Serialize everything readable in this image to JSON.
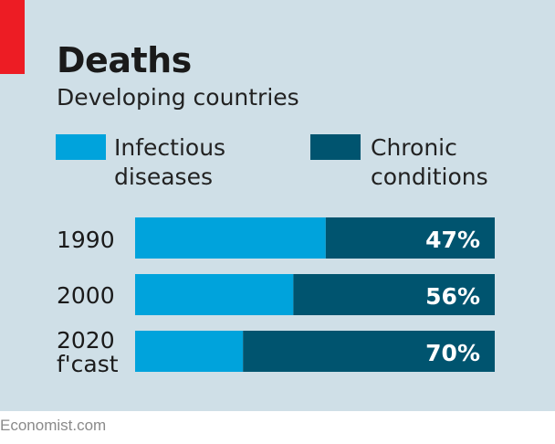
{
  "colors": {
    "background": "#cfdfe7",
    "accent_red": "#ed1c24",
    "infectious": "#00a3dc",
    "chronic": "#00546f",
    "value_label": "#ffffff"
  },
  "footer": "Economist.com",
  "chart_data": {
    "type": "bar",
    "orientation": "horizontal",
    "stacked": true,
    "normalized": true,
    "title": "Deaths",
    "subtitle": "Developing countries",
    "categories": [
      "1990",
      "2000",
      "2020"
    ],
    "category_sublabels": [
      "",
      "",
      "f'cast"
    ],
    "series": [
      {
        "name": "Infectious diseases",
        "legend_lines": [
          "Infectious",
          "diseases"
        ],
        "values": [
          53,
          44,
          30
        ]
      },
      {
        "name": "Chronic conditions",
        "legend_lines": [
          "Chronic",
          "conditions"
        ],
        "values": [
          47,
          56,
          70
        ]
      }
    ],
    "data_labels": [
      "47%",
      "56%",
      "70%"
    ],
    "xlim": [
      0,
      100
    ],
    "legend": "top",
    "grid": false
  }
}
